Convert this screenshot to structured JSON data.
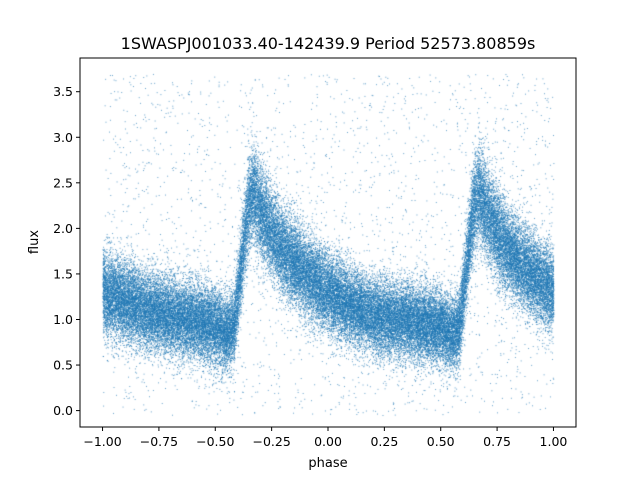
{
  "chart_data": {
    "type": "scatter",
    "title": "1SWASPJ001033.40-142439.9 Period 52573.80859s",
    "xlabel": "phase",
    "ylabel": "flux",
    "xlim": [
      -1.1,
      1.1
    ],
    "ylim": [
      -0.18,
      3.87
    ],
    "xticks": [
      -1.0,
      -0.75,
      -0.5,
      -0.25,
      0.0,
      0.25,
      0.5,
      0.75,
      1.0
    ],
    "xtick_labels": [
      "−1.00",
      "−0.75",
      "−0.50",
      "−0.25",
      "0.00",
      "0.25",
      "0.50",
      "0.75",
      "1.00"
    ],
    "yticks": [
      0.0,
      0.5,
      1.0,
      1.5,
      2.0,
      2.5,
      3.0,
      3.5
    ],
    "ytick_labels": [
      "0.0",
      "0.5",
      "1.0",
      "1.5",
      "2.0",
      "2.5",
      "3.0",
      "3.5"
    ],
    "grid": false,
    "series_color": "#1f77b4",
    "light_curve_profile": {
      "phase": [
        -1.0,
        -0.9,
        -0.8,
        -0.7,
        -0.6,
        -0.5,
        -0.45,
        -0.42,
        -0.4,
        -0.37,
        -0.35,
        -0.33,
        -0.3,
        -0.25,
        -0.2,
        -0.1,
        0.0,
        0.1,
        0.2,
        0.3,
        0.4,
        0.5,
        0.55,
        0.58,
        0.6,
        0.63,
        0.65,
        0.67,
        0.7,
        0.75,
        0.8,
        0.9,
        1.0
      ],
      "flux": [
        1.3,
        1.2,
        1.1,
        1.05,
        1.0,
        0.92,
        0.85,
        0.9,
        1.3,
        1.95,
        2.3,
        2.38,
        2.2,
        1.95,
        1.75,
        1.5,
        1.3,
        1.15,
        1.05,
        1.0,
        0.97,
        0.92,
        0.85,
        0.9,
        1.3,
        1.95,
        2.3,
        2.38,
        2.2,
        1.95,
        1.75,
        1.5,
        1.3
      ]
    },
    "scatter_sigma": 0.22,
    "approx_point_count": 60000
  }
}
